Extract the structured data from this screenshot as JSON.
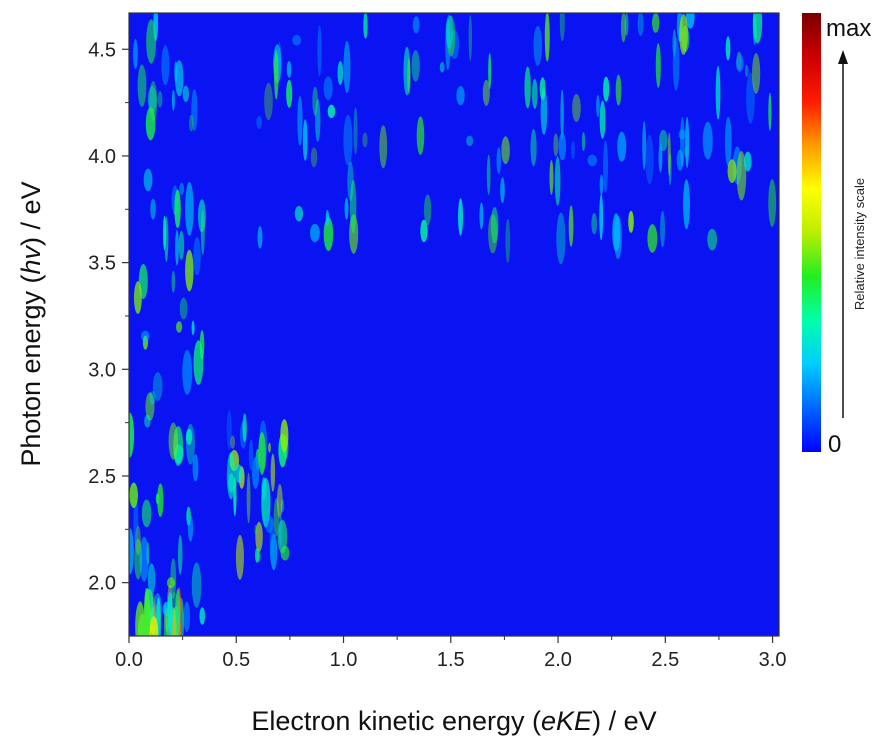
{
  "chart_data": {
    "type": "heatmap",
    "title": "",
    "xlabel": {
      "prefix": "Electron kinetic energy (",
      "italic": "eKE",
      "suffix": ") / eV"
    },
    "ylabel": {
      "prefix": "Photon energy (",
      "italic": "hv",
      "suffix": ") / eV"
    },
    "xlim": [
      0.0,
      3.03
    ],
    "ylim": [
      1.75,
      4.67
    ],
    "xticks": [
      0.0,
      0.5,
      1.0,
      1.5,
      2.0,
      2.5,
      3.0
    ],
    "xtick_labels": [
      "0.0",
      "0.5",
      "1.0",
      "1.5",
      "2.0",
      "2.5",
      "3.0"
    ],
    "yticks": [
      2.0,
      2.5,
      3.0,
      3.5,
      4.0,
      4.5
    ],
    "ytick_labels": [
      "2.0",
      "2.5",
      "3.0",
      "3.5",
      "4.0",
      "4.5"
    ],
    "background_color": "#0a14f2",
    "colorbar": {
      "max_label": "max",
      "min_label": "0",
      "title": "Relative intensity scale",
      "colors": [
        "#0000ff",
        "#0066ff",
        "#00ccff",
        "#00ffaa",
        "#22ee22",
        "#bbee00",
        "#ffff00",
        "#ff9900",
        "#ff1a00",
        "#cc0000",
        "#7a0000"
      ]
    },
    "features": [
      {
        "region": "low-eKE band",
        "x": [
          0.0,
          0.35
        ],
        "y": [
          1.75,
          4.67
        ],
        "level": 0.35
      },
      {
        "region": "low-eKE peak",
        "x": [
          0.05,
          0.25
        ],
        "y": [
          1.75,
          1.9
        ],
        "level": 0.65
      },
      {
        "region": "diagonal feature",
        "x": [
          0.45,
          0.75
        ],
        "y": [
          2.1,
          2.8
        ],
        "level": 0.4
      },
      {
        "region": "high-hv streaks",
        "x": [
          0.6,
          3.0
        ],
        "y": [
          3.6,
          4.67
        ],
        "level": 0.35
      }
    ]
  }
}
